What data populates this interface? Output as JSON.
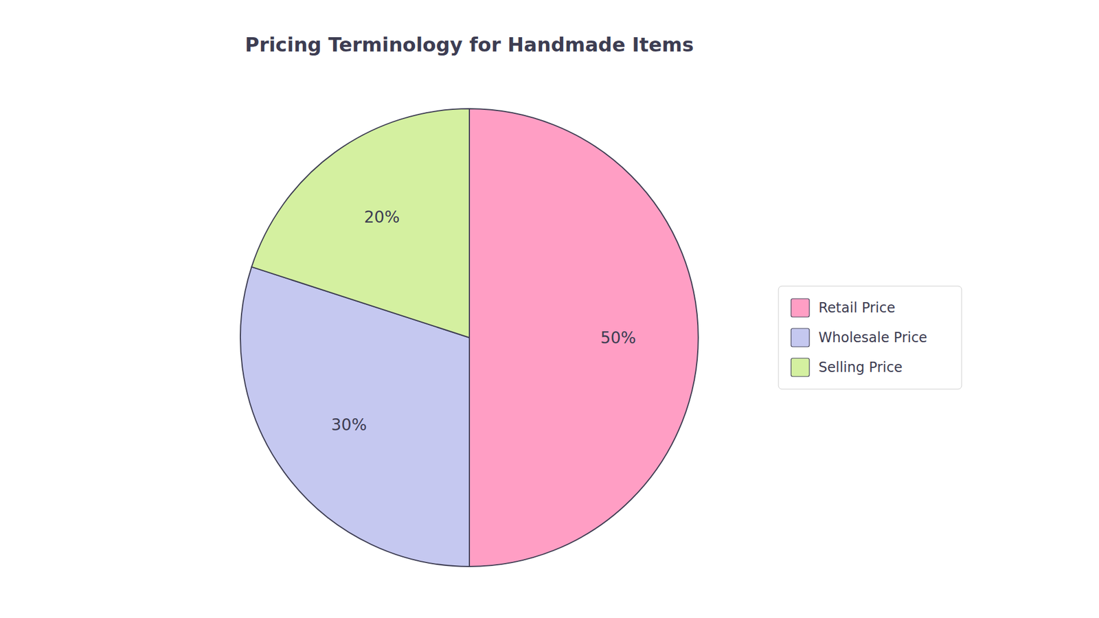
{
  "chart_data": {
    "type": "pie",
    "title": "Pricing Terminology for Handmade Items",
    "categories": [
      "Retail Price",
      "Wholesale Price",
      "Selling Price"
    ],
    "values": [
      50,
      30,
      20
    ],
    "value_labels": [
      "50%",
      "30%",
      "20%"
    ],
    "colors": [
      "#FF9EC4",
      "#C5C8F0",
      "#D4F0A0"
    ],
    "data_labels": true,
    "legend": "right"
  }
}
